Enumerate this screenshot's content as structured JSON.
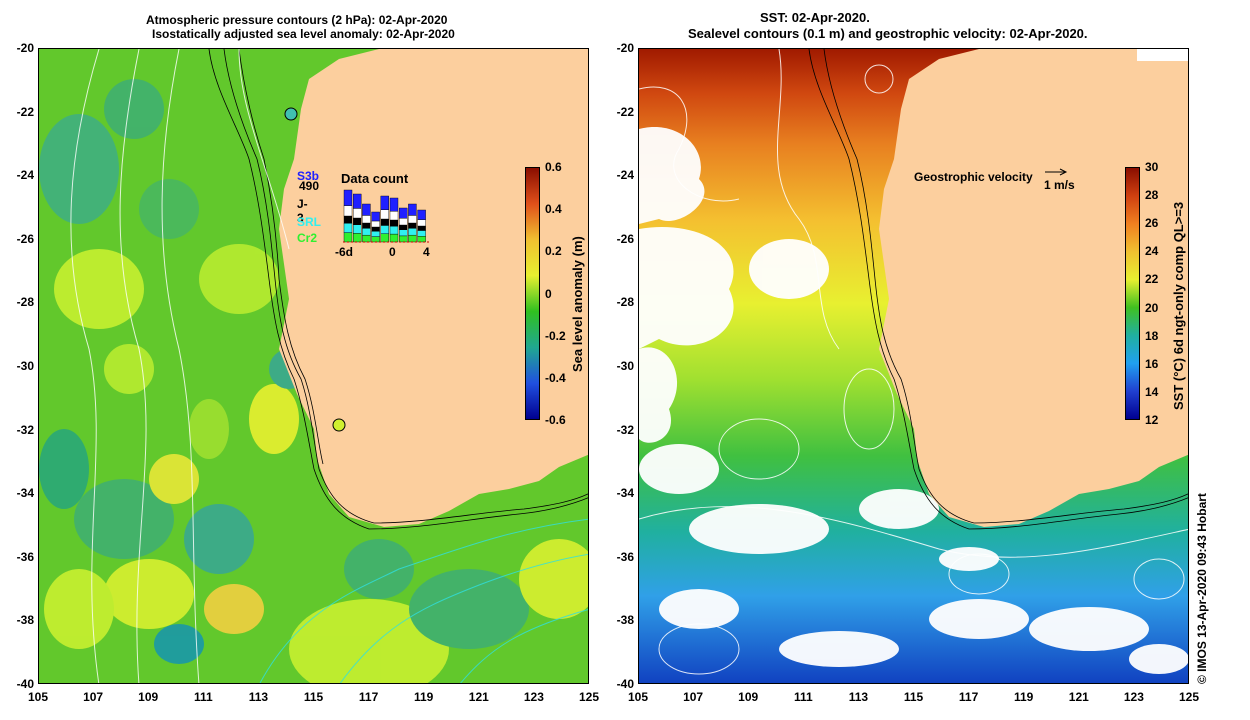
{
  "left_panel": {
    "title_line1": "Atmospheric pressure contours (2 hPa): 02-Apr-2020",
    "title_line2": "Isostatically adjusted sea level anomaly: 02-Apr-2020",
    "colorbar": {
      "title": "Sea level anomaly (m)",
      "ticks": [
        "0.6",
        "0.4",
        "0.2",
        "0",
        "-0.2",
        "-0.4",
        "-0.6"
      ],
      "colors": [
        "#8a0e00",
        "#e0501a",
        "#f0c030",
        "#e8f030",
        "#30c020",
        "#20a890",
        "#2050e0",
        "#000090"
      ]
    },
    "data_count": {
      "title": "Data count",
      "satellites": [
        "S3b",
        "490",
        "J-3",
        "SRL",
        "Cr2"
      ],
      "satellite_colors": [
        "#2020ff",
        "#000000",
        "#000000",
        "#30f0f0",
        "#30f030"
      ],
      "axis_labels": [
        "-6d",
        "0",
        "4"
      ]
    }
  },
  "right_panel": {
    "title_line1": "SST: 02-Apr-2020.",
    "title_line2": "Sealevel contours (0.1 m) and geostrophic velocity: 02-Apr-2020.",
    "velocity_legend": "Geostrophic velocity",
    "velocity_scale": "1 m/s",
    "colorbar": {
      "title": "SST (°C) 6d ngt-only comp QL>=3",
      "ticks": [
        "30",
        "28",
        "26",
        "24",
        "22",
        "20",
        "18",
        "16",
        "14",
        "12"
      ],
      "colors": [
        "#8a0e00",
        "#d04010",
        "#f08020",
        "#f0c030",
        "#e8f030",
        "#40c020",
        "#20b0a0",
        "#20a0f0",
        "#2040d0",
        "#000090"
      ]
    }
  },
  "axes": {
    "y_ticks": [
      "-20",
      "-22",
      "-24",
      "-26",
      "-28",
      "-30",
      "-32",
      "-34",
      "-36",
      "-38",
      "-40"
    ],
    "x_ticks": [
      "105",
      "107",
      "109",
      "111",
      "113",
      "115",
      "117",
      "119",
      "121",
      "123",
      "125"
    ]
  },
  "credit": "© IMOS 13-Apr-2020 09:43 Hobart"
}
